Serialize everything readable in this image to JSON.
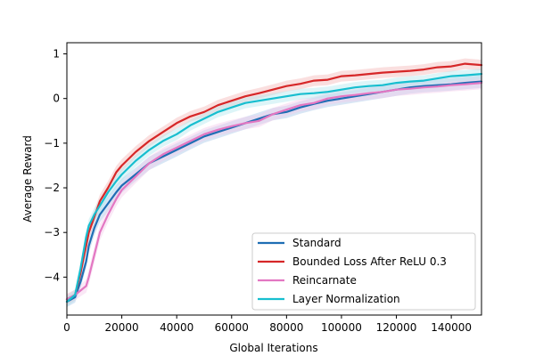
{
  "chart_data": {
    "type": "line",
    "xlabel": "Global Iterations",
    "ylabel": "Average Reward",
    "xlim": [
      0,
      151000
    ],
    "ylim": [
      -4.85,
      1.25
    ],
    "xticks": [
      0,
      20000,
      40000,
      60000,
      80000,
      100000,
      120000,
      140000
    ],
    "yticks": [
      -4,
      -3,
      -2,
      -1,
      0,
      1
    ],
    "grid": false,
    "legend_position": "lower-right",
    "series": [
      {
        "name": "Standard",
        "color": "#1f6eb4",
        "band_color": "#a9c8e8",
        "x": [
          0,
          3000,
          5000,
          7000,
          8000,
          10000,
          12000,
          15000,
          18000,
          20000,
          25000,
          30000,
          35000,
          40000,
          45000,
          50000,
          55000,
          60000,
          65000,
          70000,
          75000,
          80000,
          85000,
          90000,
          95000,
          100000,
          105000,
          110000,
          115000,
          120000,
          125000,
          130000,
          135000,
          140000,
          145000,
          151000
        ],
        "y": [
          -4.55,
          -4.45,
          -4.1,
          -3.65,
          -3.3,
          -2.9,
          -2.6,
          -2.35,
          -2.1,
          -1.95,
          -1.7,
          -1.45,
          -1.3,
          -1.15,
          -1.0,
          -0.85,
          -0.75,
          -0.65,
          -0.55,
          -0.45,
          -0.35,
          -0.3,
          -0.2,
          -0.12,
          -0.05,
          0.0,
          0.05,
          0.1,
          0.15,
          0.2,
          0.25,
          0.28,
          0.3,
          0.32,
          0.35,
          0.38
        ],
        "band": [
          0.12,
          0.12,
          0.14,
          0.15,
          0.16,
          0.17,
          0.17,
          0.17,
          0.16,
          0.16,
          0.15,
          0.15,
          0.15,
          0.15,
          0.14,
          0.14,
          0.14,
          0.14,
          0.14,
          0.14,
          0.14,
          0.14,
          0.14,
          0.14,
          0.14,
          0.14,
          0.14,
          0.14,
          0.14,
          0.14,
          0.14,
          0.14,
          0.14,
          0.14,
          0.14,
          0.14
        ]
      },
      {
        "name": "Bounded Loss After ReLU 0.3",
        "color": "#d62728",
        "band_color": "#f4b8b8",
        "x": [
          0,
          3000,
          5000,
          7000,
          8000,
          10000,
          12000,
          15000,
          18000,
          20000,
          25000,
          30000,
          35000,
          40000,
          45000,
          50000,
          55000,
          60000,
          65000,
          70000,
          75000,
          80000,
          85000,
          90000,
          95000,
          100000,
          105000,
          110000,
          115000,
          120000,
          125000,
          130000,
          135000,
          140000,
          145000,
          151000
        ],
        "y": [
          -4.5,
          -4.4,
          -3.9,
          -3.3,
          -3.0,
          -2.65,
          -2.3,
          -2.0,
          -1.65,
          -1.5,
          -1.2,
          -0.95,
          -0.75,
          -0.55,
          -0.4,
          -0.3,
          -0.15,
          -0.05,
          0.05,
          0.12,
          0.2,
          0.28,
          0.33,
          0.4,
          0.42,
          0.5,
          0.52,
          0.55,
          0.58,
          0.6,
          0.62,
          0.65,
          0.7,
          0.72,
          0.78,
          0.75
        ],
        "band": [
          0.12,
          0.12,
          0.13,
          0.14,
          0.15,
          0.15,
          0.15,
          0.15,
          0.14,
          0.14,
          0.13,
          0.13,
          0.12,
          0.12,
          0.12,
          0.12,
          0.12,
          0.12,
          0.12,
          0.12,
          0.12,
          0.12,
          0.12,
          0.12,
          0.12,
          0.12,
          0.12,
          0.12,
          0.12,
          0.12,
          0.12,
          0.12,
          0.12,
          0.12,
          0.12,
          0.12
        ]
      },
      {
        "name": "Reincarnate",
        "color": "#e377c2",
        "band_color": "#f5cdea",
        "x": [
          0,
          3000,
          5000,
          7000,
          8000,
          10000,
          12000,
          15000,
          18000,
          20000,
          25000,
          30000,
          35000,
          40000,
          45000,
          50000,
          55000,
          60000,
          65000,
          70000,
          75000,
          80000,
          85000,
          90000,
          95000,
          100000,
          105000,
          110000,
          115000,
          120000,
          125000,
          130000,
          135000,
          140000,
          145000,
          151000
        ],
        "y": [
          -4.5,
          -4.4,
          -4.3,
          -4.2,
          -4.0,
          -3.5,
          -3.0,
          -2.6,
          -2.25,
          -2.05,
          -1.75,
          -1.45,
          -1.25,
          -1.1,
          -0.95,
          -0.8,
          -0.7,
          -0.62,
          -0.55,
          -0.5,
          -0.35,
          -0.25,
          -0.15,
          -0.1,
          0.0,
          0.05,
          0.08,
          0.12,
          0.15,
          0.2,
          0.22,
          0.25,
          0.27,
          0.3,
          0.32,
          0.35
        ],
        "band": [
          0.12,
          0.12,
          0.13,
          0.15,
          0.17,
          0.18,
          0.18,
          0.17,
          0.16,
          0.16,
          0.15,
          0.15,
          0.15,
          0.15,
          0.14,
          0.14,
          0.14,
          0.14,
          0.14,
          0.14,
          0.14,
          0.14,
          0.14,
          0.14,
          0.14,
          0.14,
          0.14,
          0.14,
          0.14,
          0.14,
          0.14,
          0.14,
          0.14,
          0.14,
          0.14,
          0.14
        ]
      },
      {
        "name": "Layer Normalization",
        "color": "#17becf",
        "band_color": "#b3e9ef",
        "x": [
          0,
          3000,
          5000,
          7000,
          8000,
          10000,
          12000,
          15000,
          18000,
          20000,
          25000,
          30000,
          35000,
          40000,
          45000,
          50000,
          55000,
          60000,
          65000,
          70000,
          75000,
          80000,
          85000,
          90000,
          95000,
          100000,
          105000,
          110000,
          115000,
          120000,
          125000,
          130000,
          135000,
          140000,
          145000,
          151000
        ],
        "y": [
          -4.55,
          -4.4,
          -3.8,
          -3.1,
          -2.85,
          -2.6,
          -2.4,
          -2.1,
          -1.85,
          -1.7,
          -1.4,
          -1.15,
          -0.95,
          -0.8,
          -0.6,
          -0.45,
          -0.3,
          -0.2,
          -0.1,
          -0.05,
          0.0,
          0.05,
          0.1,
          0.12,
          0.15,
          0.2,
          0.25,
          0.28,
          0.3,
          0.35,
          0.38,
          0.4,
          0.45,
          0.5,
          0.52,
          0.55
        ],
        "band": [
          0.12,
          0.12,
          0.13,
          0.14,
          0.15,
          0.15,
          0.15,
          0.14,
          0.14,
          0.14,
          0.13,
          0.13,
          0.13,
          0.13,
          0.12,
          0.12,
          0.12,
          0.12,
          0.12,
          0.12,
          0.12,
          0.12,
          0.12,
          0.12,
          0.12,
          0.12,
          0.12,
          0.12,
          0.12,
          0.12,
          0.12,
          0.12,
          0.12,
          0.12,
          0.12,
          0.12
        ]
      }
    ]
  }
}
